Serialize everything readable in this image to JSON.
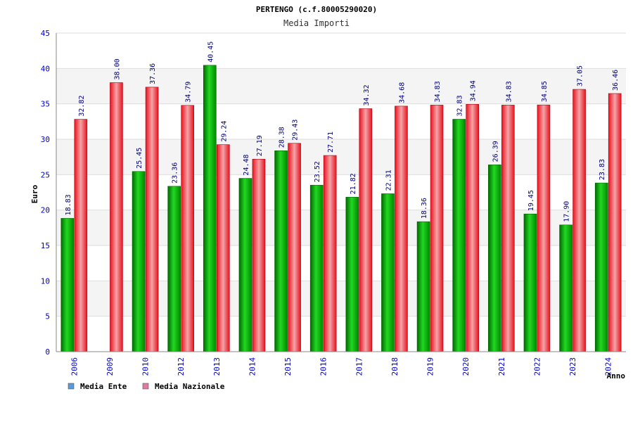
{
  "chart_data": {
    "type": "bar",
    "title": "PERTENGO (c.f.80005290020)",
    "subtitle": "Media Importi",
    "ylabel": "Euro",
    "xlabel": "Anno",
    "ylim": [
      0,
      45
    ],
    "yticks": [
      0,
      5,
      10,
      15,
      20,
      25,
      30,
      35,
      40,
      45
    ],
    "categories": [
      "2006",
      "2009",
      "2010",
      "2012",
      "2013",
      "2014",
      "2015",
      "2016",
      "2017",
      "2018",
      "2019",
      "2020",
      "2021",
      "2022",
      "2023",
      "2024"
    ],
    "series": [
      {
        "name": "Media Ente",
        "color": "#00b000",
        "values": [
          18.83,
          null,
          25.45,
          23.36,
          40.45,
          24.48,
          28.38,
          23.52,
          21.82,
          22.31,
          18.36,
          32.83,
          26.39,
          19.45,
          17.9,
          23.83
        ],
        "labels": [
          "18.83",
          "",
          "25.45",
          "23.36",
          "40.45",
          "24.48",
          "28.38",
          "23.52",
          "21.82",
          "22.31",
          "18.36",
          "32.83",
          "26.39",
          "19.45",
          "17.90",
          "23.83"
        ]
      },
      {
        "name": "Media Nazionale",
        "color": "#e8202a",
        "values": [
          32.82,
          38.0,
          37.36,
          34.79,
          29.24,
          27.19,
          29.43,
          27.71,
          34.32,
          34.68,
          34.83,
          34.94,
          34.83,
          34.85,
          37.05,
          36.46
        ],
        "labels": [
          "32.82",
          "38.00",
          "37.36",
          "34.79",
          "29.24",
          "27.19",
          "29.43",
          "27.71",
          "34.32",
          "34.68",
          "34.83",
          "34.94",
          "34.83",
          "34.85",
          "37.05",
          "36.46"
        ]
      }
    ],
    "grid": true,
    "legend_placement": "bottom-left",
    "legend": [
      {
        "label": "Media Ente",
        "swatch_color": "#5b9bd5"
      },
      {
        "label": "Media Nazionale",
        "swatch_color": "#e07aa0"
      }
    ]
  }
}
